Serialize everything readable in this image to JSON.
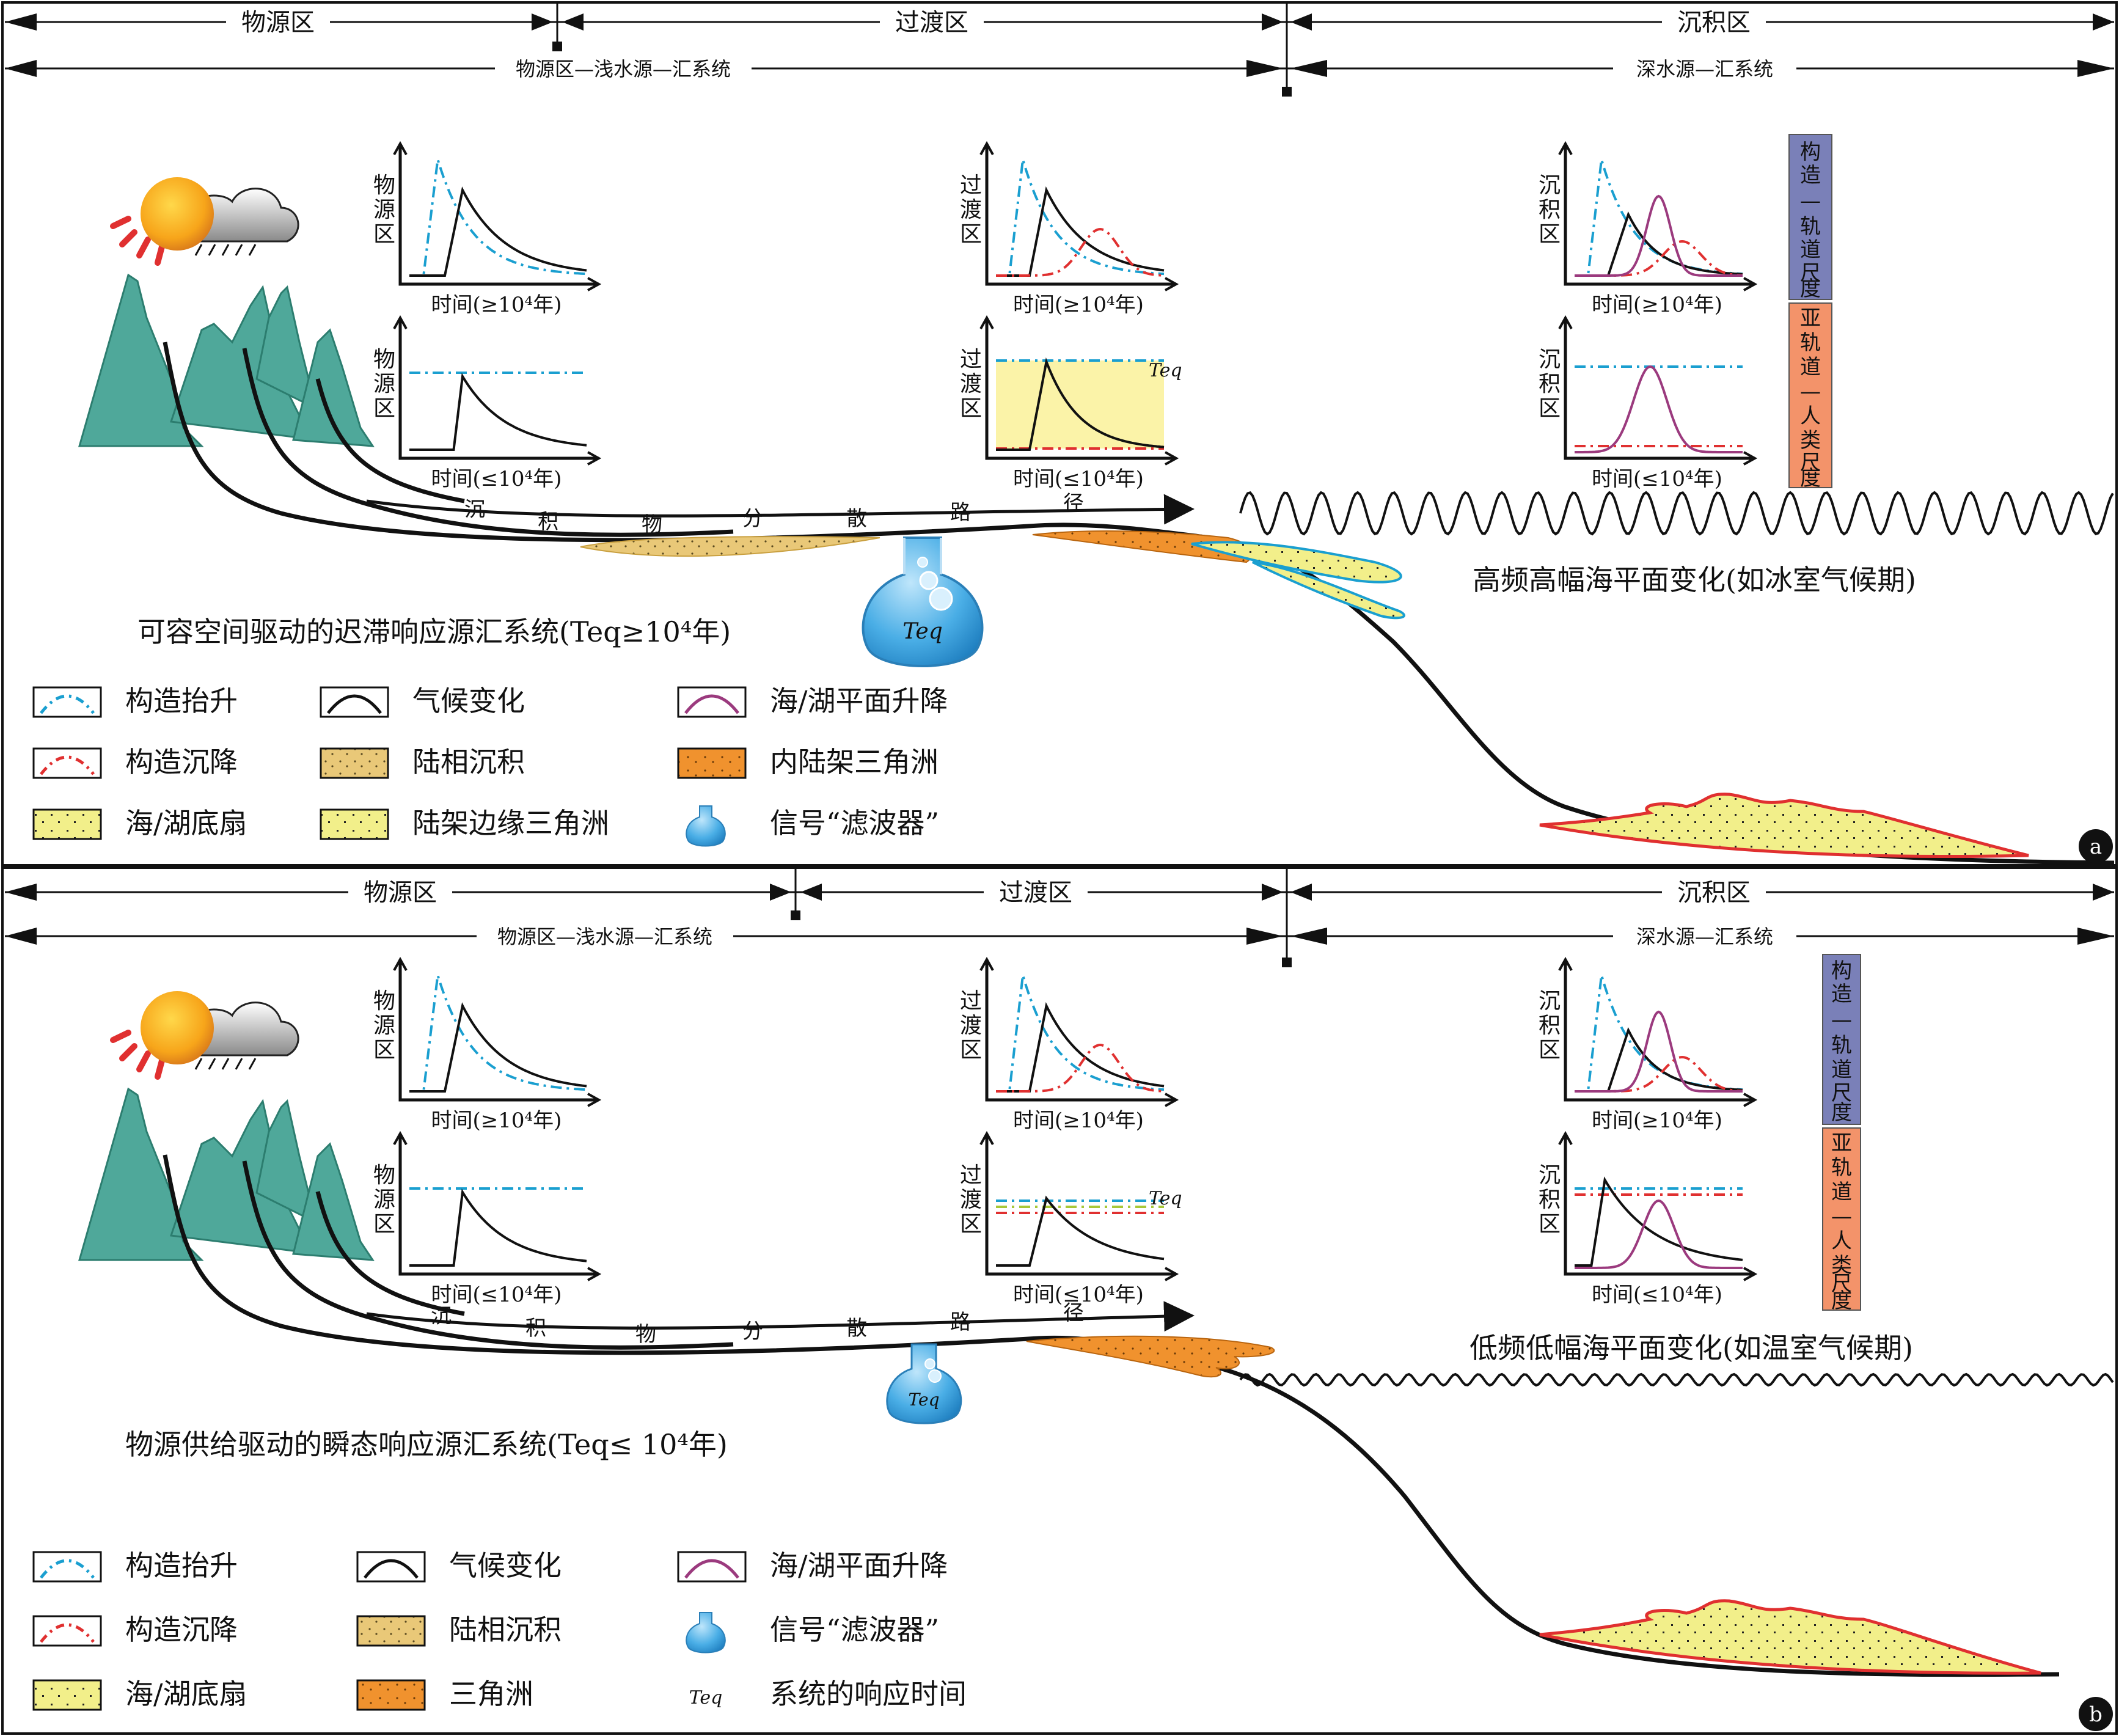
{
  "panels": [
    {
      "id": "a",
      "badge": "a",
      "zones": {
        "provenance": "物源区",
        "transition": "过渡区",
        "deposition": "沉积区"
      },
      "systems": {
        "shallow": "物源区—浅水源—汇系统",
        "deep": "深水源—汇系统"
      },
      "graphs": {
        "provenance_label": "物源区",
        "transition_label": "过渡区",
        "deposition_label": "沉积区",
        "time_long": "时间(≥10⁴年)",
        "time_short": "时间(≤10⁴年)",
        "teq": "Teq"
      },
      "dispersal_path": [
        "沉",
        "积",
        "物",
        "分",
        "散",
        "路",
        "径"
      ],
      "scale_orbital": "构造—轨道尺度",
      "scale_suborbital": "亚轨道—人类尺度",
      "sea_level_caption": "高频高幅海平面变化(如冰室气候期)",
      "system_caption": "可容空间驱动的迟滞响应源汇系统(Teq≥10⁴年)",
      "flask_label": "Teq",
      "legend": [
        "构造抬升",
        "气候变化",
        "海/湖平面升降",
        "构造沉降",
        "陆相沉积",
        "内陆架三角洲",
        "海/湖底扇",
        "陆架边缘三角洲",
        "信号“滤波器”"
      ]
    },
    {
      "id": "b",
      "badge": "b",
      "zones": {
        "provenance": "物源区",
        "transition": "过渡区",
        "deposition": "沉积区"
      },
      "systems": {
        "shallow": "物源区—浅水源—汇系统",
        "deep": "深水源—汇系统"
      },
      "graphs": {
        "provenance_label": "物源区",
        "transition_label": "过渡区",
        "deposition_label": "沉积区",
        "time_long": "时间(≥10⁴年)",
        "time_short": "时间(≤10⁴年)",
        "teq": "Teq"
      },
      "dispersal_path": [
        "沉",
        "积",
        "物",
        "分",
        "散",
        "路",
        "径"
      ],
      "scale_orbital": "构造—轨道尺度",
      "scale_suborbital": "亚轨道—人类尺度",
      "sea_level_caption": "低频低幅海平面变化(如温室气候期)",
      "system_caption": "物源供给驱动的瞬态响应源汇系统(Teq≤ 10⁴年)",
      "flask_label": "Teq",
      "legend": [
        "构造抬升",
        "气候变化",
        "海/湖平面升降",
        "构造沉降",
        "陆相沉积",
        "信号“滤波器”",
        "海/湖底扇",
        "三角洲",
        "系统的响应时间"
      ],
      "legend_teq_symbol": "Teq"
    }
  ],
  "colors": {
    "uplift": "#1a9fd0",
    "subsidence": "#e03030",
    "climate": "#111111",
    "sealevel": "#9b3a7e",
    "mountain": "#4fa89a",
    "terrestrial": "#e9c878",
    "delta": "#f0922e",
    "fan": "#f2ef8a",
    "orbital_bar": "#7a80b8",
    "suborbital_bar": "#f3936a",
    "teq_band": "#fbf3a8"
  }
}
